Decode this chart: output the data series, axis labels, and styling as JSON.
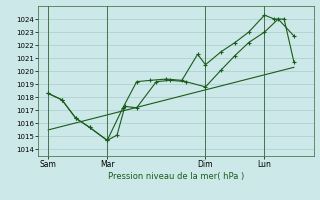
{
  "xlabel": "Pression niveau de la mer( hPa )",
  "bg_color": "#cce8e8",
  "grid_color": "#aacccc",
  "line_color": "#1a5c1a",
  "ylim": [
    1013.5,
    1025.0
  ],
  "yticks": [
    1014,
    1015,
    1016,
    1017,
    1018,
    1019,
    1020,
    1021,
    1022,
    1023,
    1024
  ],
  "xtick_labels": [
    "Sam",
    "Mar",
    "Dim",
    "Lun"
  ],
  "xtick_positions": [
    0,
    3,
    8,
    11
  ],
  "vline_positions": [
    0,
    3,
    8,
    11
  ],
  "xlim": [
    -0.5,
    13.5
  ],
  "series1_x": [
    0,
    0.7,
    1.4,
    2.1,
    3.0,
    3.5,
    3.9,
    4.5,
    5.5,
    6.2,
    7.0,
    8.0,
    8.8,
    9.5,
    10.2,
    11.0,
    11.7,
    12.5
  ],
  "series1_y": [
    1018.3,
    1017.8,
    1016.4,
    1015.7,
    1014.7,
    1015.1,
    1017.3,
    1017.2,
    1019.2,
    1019.3,
    1019.2,
    1018.8,
    1020.1,
    1021.2,
    1022.2,
    1023.0,
    1024.0,
    1022.7
  ],
  "series2_x": [
    0,
    0.7,
    1.4,
    2.1,
    3.0,
    3.8,
    4.5,
    5.2,
    6.0,
    6.8,
    7.6,
    8.0,
    8.8,
    9.5,
    10.2,
    11.0,
    11.5,
    12.0,
    12.5
  ],
  "series2_y": [
    1018.3,
    1017.8,
    1016.4,
    1015.7,
    1014.7,
    1017.2,
    1019.2,
    1019.3,
    1019.4,
    1019.3,
    1021.3,
    1020.5,
    1021.5,
    1022.2,
    1023.0,
    1024.3,
    1024.0,
    1024.0,
    1020.7
  ],
  "trend_x": [
    0,
    12.5
  ],
  "trend_y": [
    1015.5,
    1020.3
  ],
  "figsize": [
    3.2,
    2.0
  ],
  "dpi": 100
}
